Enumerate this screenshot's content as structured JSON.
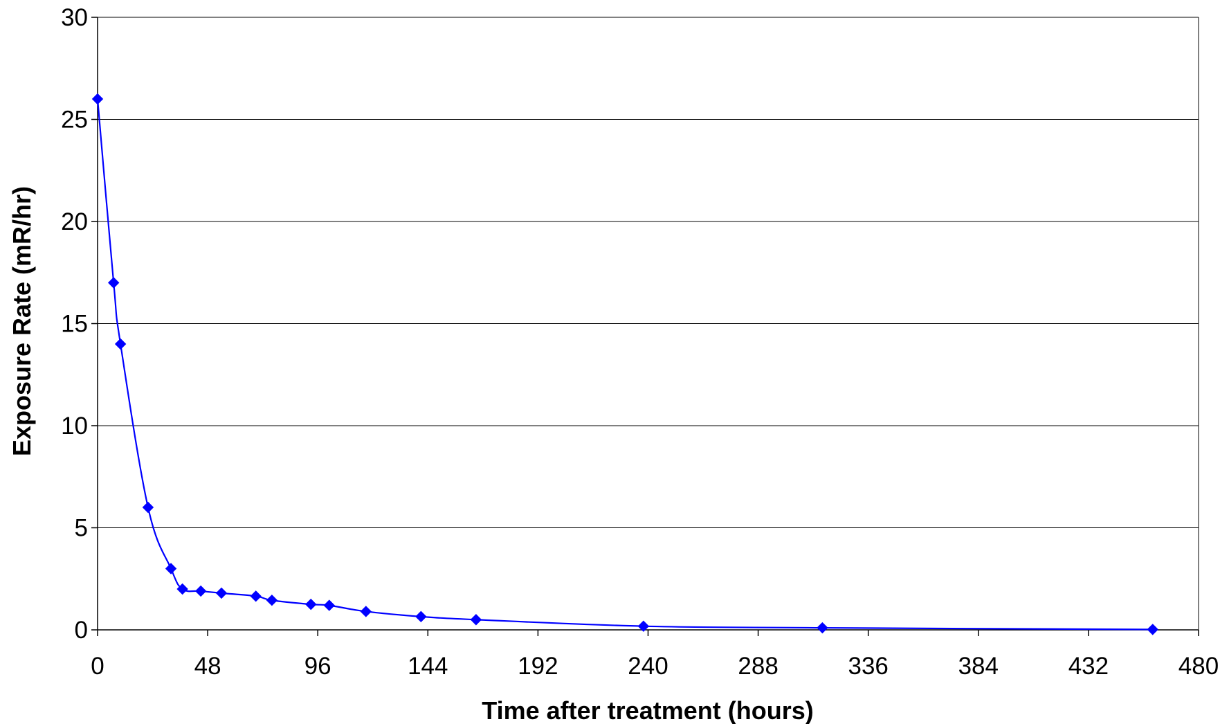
{
  "chart_data": {
    "type": "line",
    "title": "",
    "xlabel": "Time after treatment (hours)",
    "ylabel": "Exposure Rate (mR/hr)",
    "xlim": [
      0,
      480
    ],
    "ylim": [
      0,
      30
    ],
    "xticks": [
      "0",
      "48",
      "96",
      "144",
      "192",
      "240",
      "288",
      "336",
      "384",
      "432",
      "480"
    ],
    "yticks": [
      "0",
      "5",
      "10",
      "15",
      "20",
      "25",
      "30"
    ],
    "grid": "horizontal",
    "legend": "none",
    "marker": "diamond",
    "line_color": "#0000ff",
    "marker_color": "#0000ff",
    "series": [
      {
        "x": [
          0,
          7,
          10,
          22,
          32,
          37,
          45,
          54,
          69,
          76,
          93,
          101,
          117,
          141,
          165,
          238,
          316,
          460
        ],
        "values": [
          26,
          17,
          14,
          6,
          3,
          2,
          1.9,
          1.8,
          1.65,
          1.45,
          1.25,
          1.2,
          0.9,
          0.65,
          0.5,
          0.18,
          0.1,
          0.02
        ]
      }
    ]
  }
}
